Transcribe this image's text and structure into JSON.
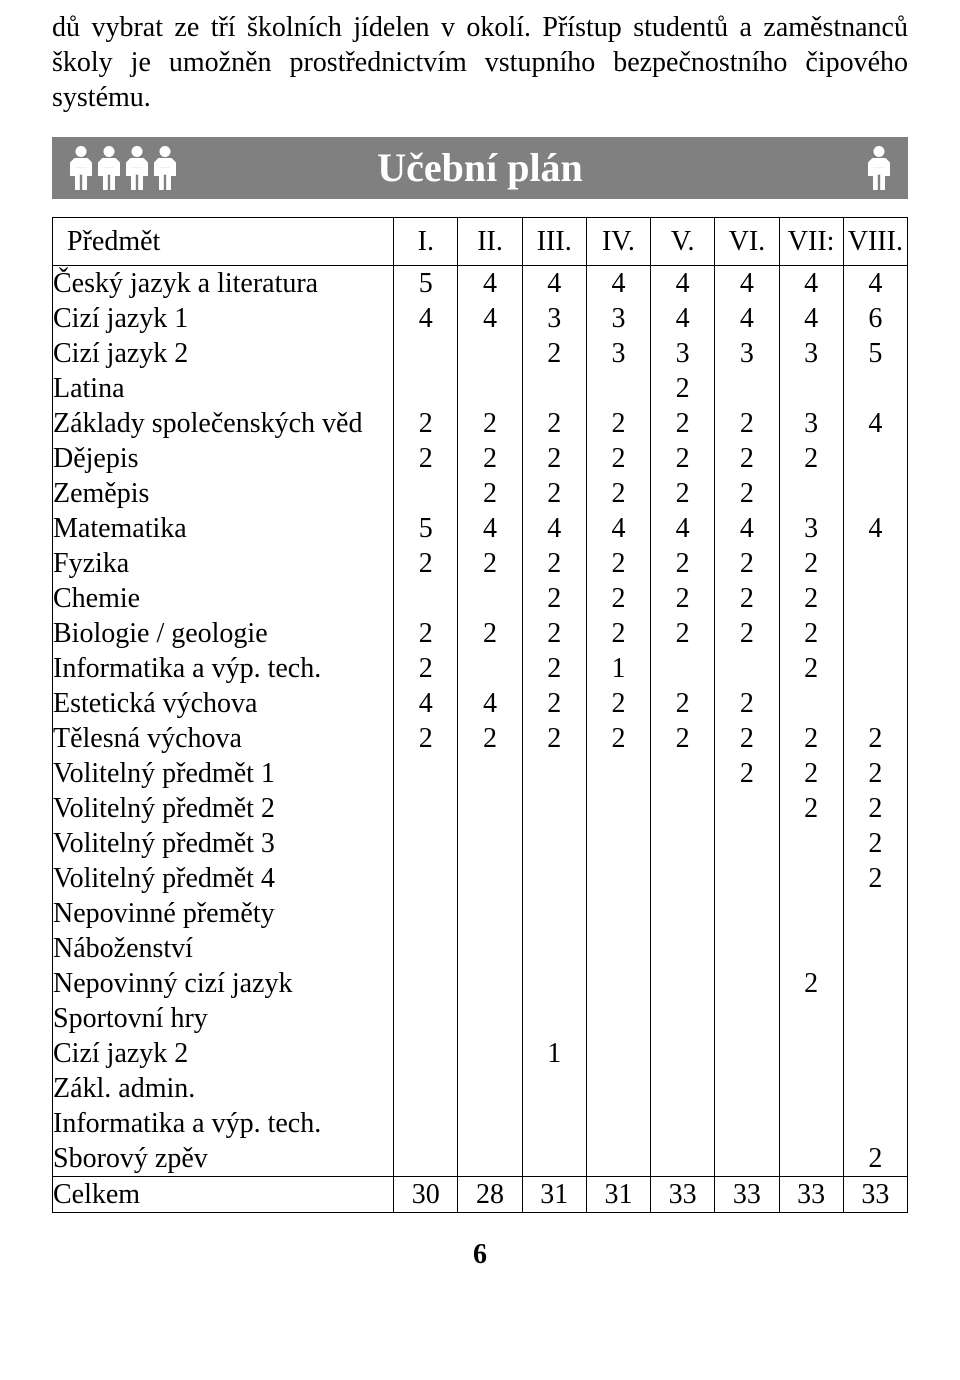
{
  "intro_text": "dů vybrat ze tří školních jídelen v okolí. Přístup studentů a zaměstnanců školy je umožněn prostřednictvím vstupního bezpečnostního čipového systému.",
  "banner_title": "Učební plán",
  "header": {
    "subject": "Předmět",
    "cols": [
      "I.",
      "II.",
      "III.",
      "IV.",
      "V.",
      "VI.",
      "VII:",
      "VIII."
    ]
  },
  "subjects": [
    "Český jazyk a literatura",
    "Cizí jazyk 1",
    "Cizí jazyk 2",
    "Latina",
    "Základy společenských věd",
    "Dějepis",
    "Zeměpis",
    "Matematika",
    "Fyzika",
    "Chemie",
    "Biologie / geologie",
    "Informatika a výp. tech.",
    "Estetická výchova",
    "Tělesná výchova",
    "Volitelný předmět 1",
    "Volitelný předmět 2",
    "Volitelný předmět 3",
    "Volitelný předmět 4",
    "Nepovinné přeměty",
    "Náboženství",
    "Nepovinný cizí jazyk",
    "Sportovní hry",
    "Cizí jazyk 2",
    "Zákl. admin.",
    "Informatika a výp. tech.",
    "Sborový zpěv"
  ],
  "grid": [
    [
      "5",
      "4",
      "",
      "",
      "2",
      "2",
      "",
      "5",
      "2",
      "",
      "2",
      "2",
      "4",
      "2",
      "",
      "",
      "",
      "",
      "",
      "",
      "",
      "",
      "",
      "",
      "",
      ""
    ],
    [
      "4",
      "4",
      "",
      "",
      "2",
      "2",
      "2",
      "4",
      "2",
      "",
      "2",
      "",
      "4",
      "2",
      "",
      "",
      "",
      "",
      "",
      "",
      "",
      "",
      "",
      "",
      "",
      ""
    ],
    [
      "4",
      "3",
      "2",
      "",
      "2",
      "2",
      "2",
      "4",
      "2",
      "2",
      "2",
      "2",
      "2",
      "2",
      "",
      "",
      "",
      "",
      "",
      "",
      "",
      "",
      "1",
      "",
      "",
      ""
    ],
    [
      "4",
      "3",
      "3",
      "",
      "2",
      "2",
      "2",
      "4",
      "2",
      "2",
      "2",
      "1",
      "2",
      "2",
      "",
      "",
      "",
      "",
      "",
      "",
      "",
      "",
      "",
      "",
      "",
      ""
    ],
    [
      "4",
      "4",
      "3",
      "2",
      "2",
      "2",
      "2",
      "4",
      "2",
      "2",
      "2",
      "",
      "2",
      "2",
      "",
      "",
      "",
      "",
      "",
      "",
      "",
      "",
      "",
      "",
      "",
      ""
    ],
    [
      "4",
      "4",
      "3",
      "",
      "2",
      "2",
      "2",
      "4",
      "2",
      "2",
      "2",
      "",
      "2",
      "2",
      "2",
      "",
      "",
      "",
      "",
      "",
      "",
      "",
      "",
      "",
      "",
      ""
    ],
    [
      "4",
      "4",
      "3",
      "",
      "3",
      "2",
      "",
      "3",
      "2",
      "2",
      "2",
      "2",
      "",
      "2",
      "2",
      "2",
      "",
      "",
      "",
      "",
      "2",
      "",
      "",
      "",
      "",
      ""
    ],
    [
      "4",
      "6",
      "5",
      "",
      "4",
      "",
      "",
      "4",
      "",
      "",
      "",
      "",
      "",
      "2",
      "2",
      "2",
      "2",
      "2",
      "",
      "",
      "",
      "",
      "",
      "",
      "",
      "2"
    ]
  ],
  "totals": {
    "label": "Celkem",
    "values": [
      "30",
      "28",
      "31",
      "31",
      "33",
      "33",
      "33",
      "33"
    ]
  },
  "page_number": "6",
  "colors": {
    "banner_bg": "#808080",
    "banner_fg": "#ffffff",
    "text": "#000000",
    "border": "#000000"
  }
}
